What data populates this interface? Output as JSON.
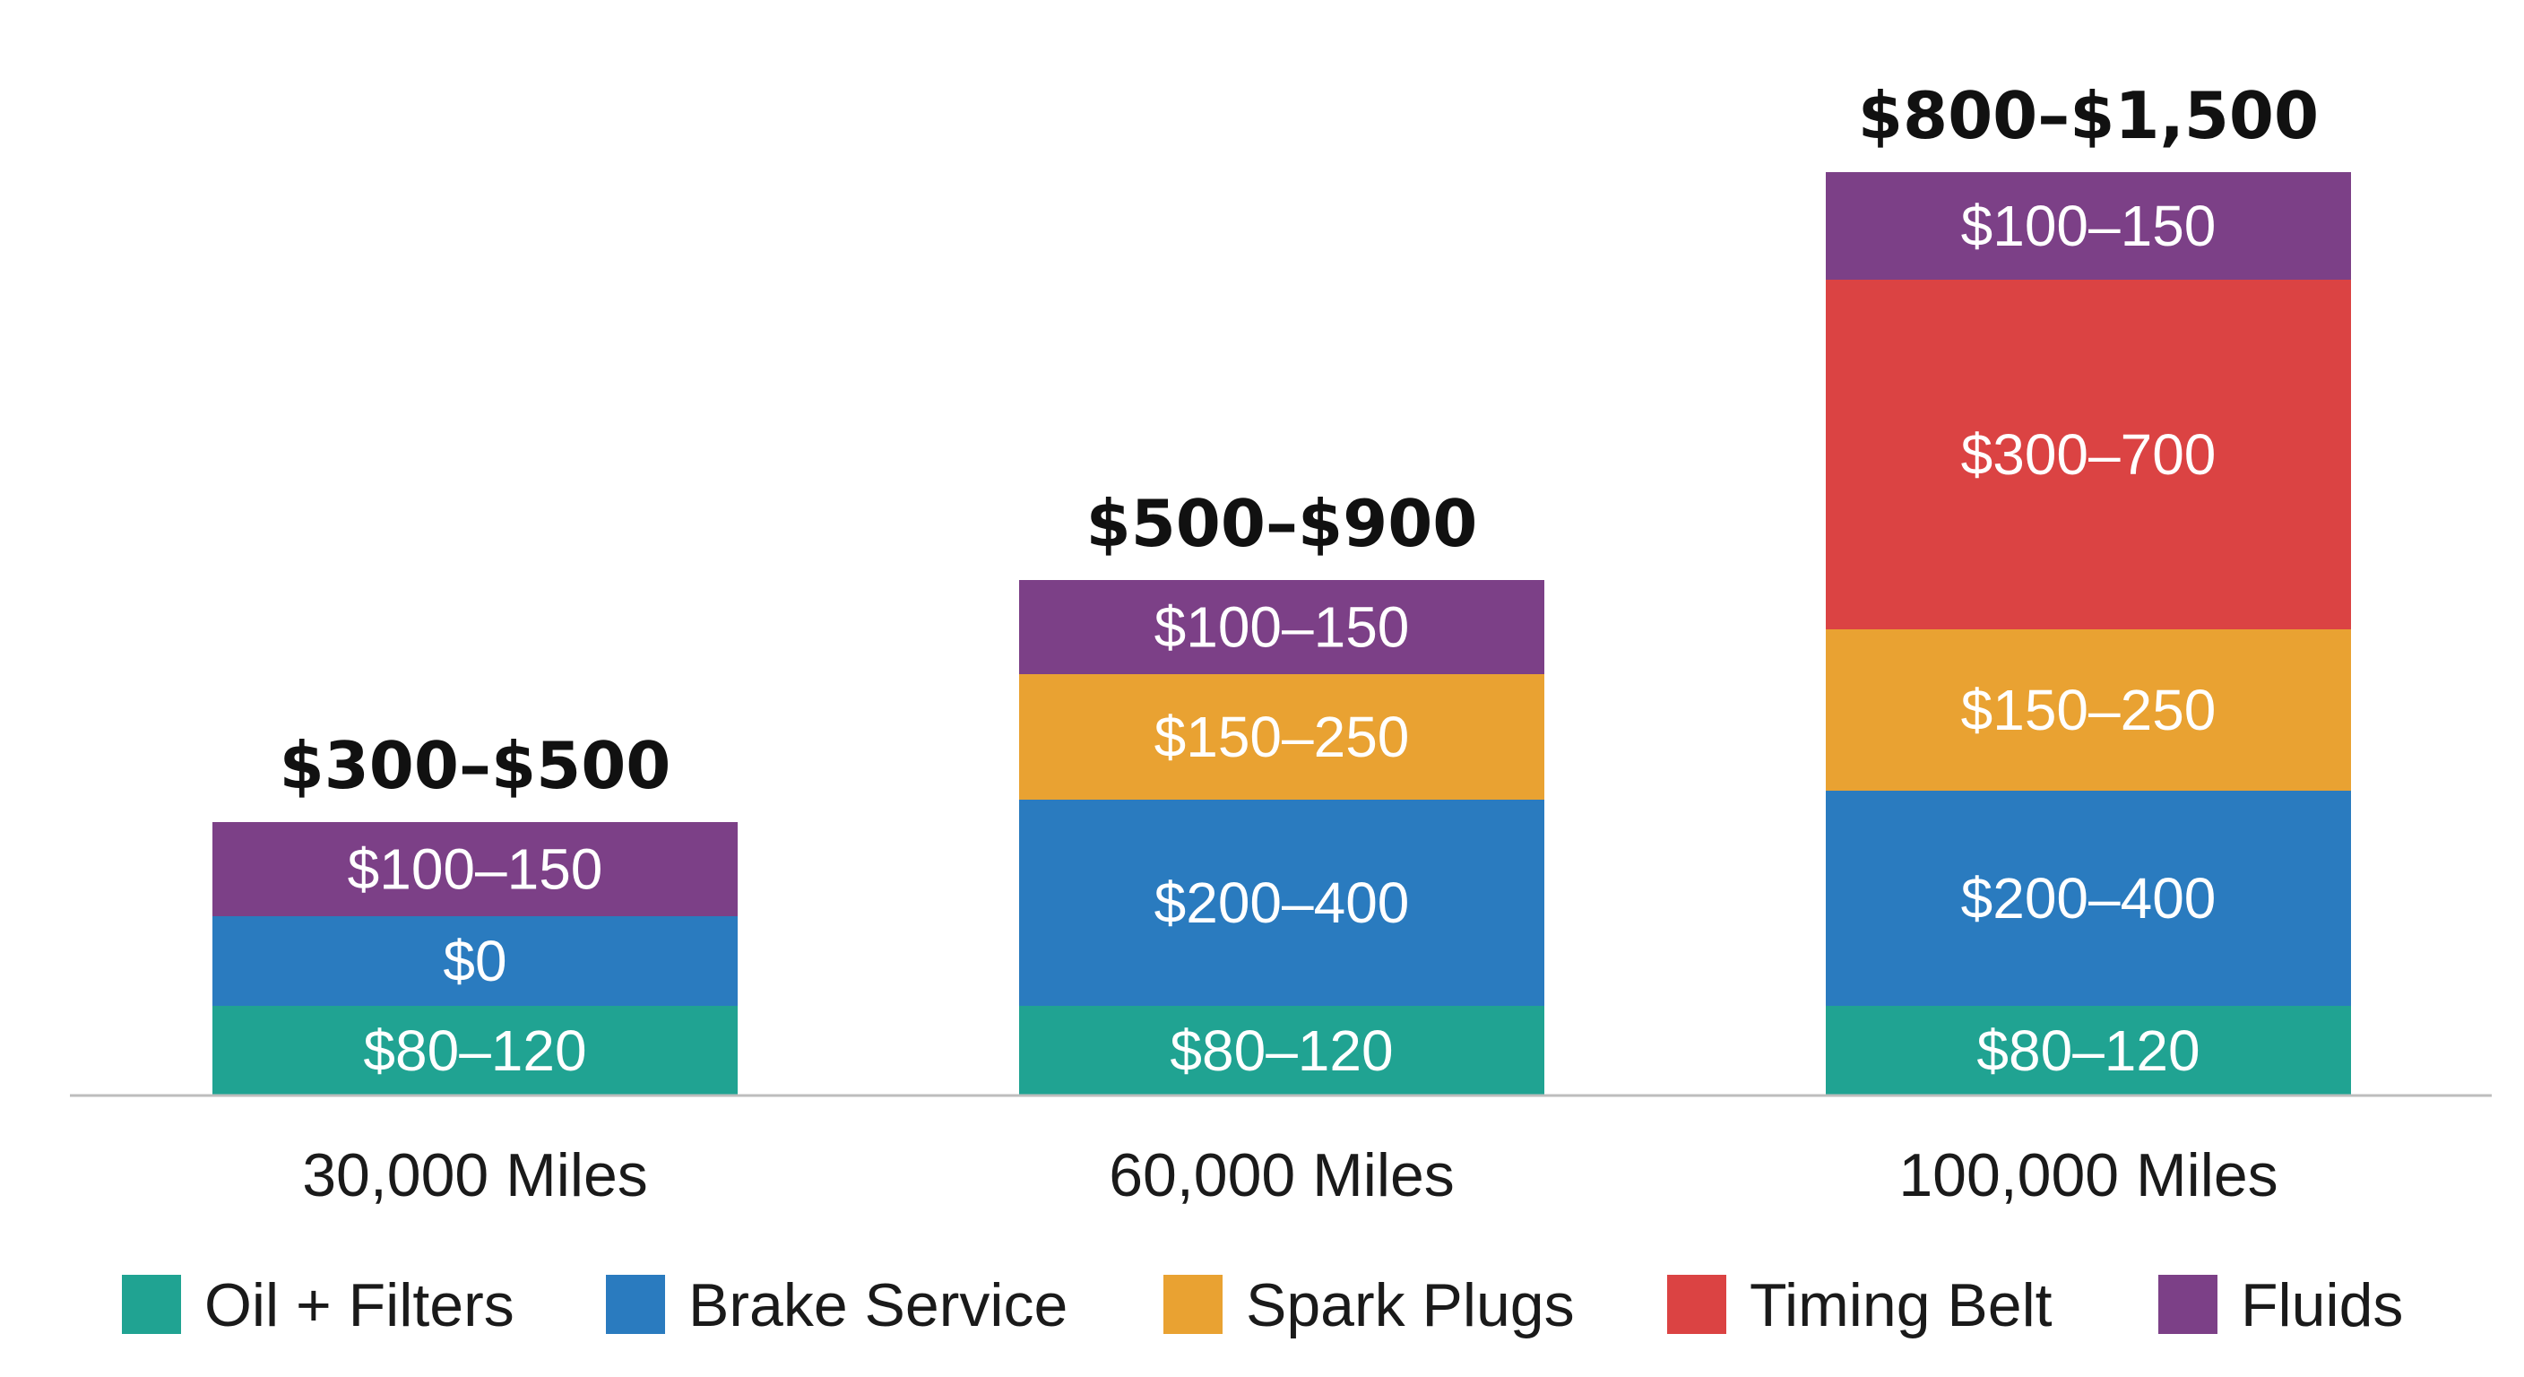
{
  "chart_data": {
    "type": "bar",
    "stacked": true,
    "categories": [
      "30,000 Miles",
      "60,000 Miles",
      "100,000 Miles"
    ],
    "totals": [
      "$300–$500",
      "$500–$900",
      "$800–$1,500"
    ],
    "series": [
      {
        "name": "Oil + Filters",
        "color": "#20a392",
        "values": [
          1,
          1,
          1
        ],
        "labels": [
          "$80–120",
          "$80–120",
          "$80–120"
        ]
      },
      {
        "name": "Brake Service",
        "color": "#2a7bbf",
        "values": [
          1,
          2.3,
          2.4
        ],
        "labels": [
          "$0",
          "$200–400",
          "$200–400"
        ]
      },
      {
        "name": "Spark Plugs",
        "color": "#e9a232",
        "values": [
          0,
          1.4,
          1.8
        ],
        "labels": [
          "",
          "$150–250",
          "$150–250"
        ]
      },
      {
        "name": "Timing Belt",
        "color": "#db4343",
        "values": [
          0,
          0,
          3.9
        ],
        "labels": [
          "",
          "",
          "$300–700"
        ]
      },
      {
        "name": "Fluids",
        "color": "#7c4087",
        "values": [
          1.05,
          1.05,
          1.2
        ],
        "labels": [
          "$100–150",
          "$100–150",
          "$100–150"
        ]
      }
    ],
    "legend_position": "bottom",
    "grid": false,
    "axes_visible": false
  }
}
